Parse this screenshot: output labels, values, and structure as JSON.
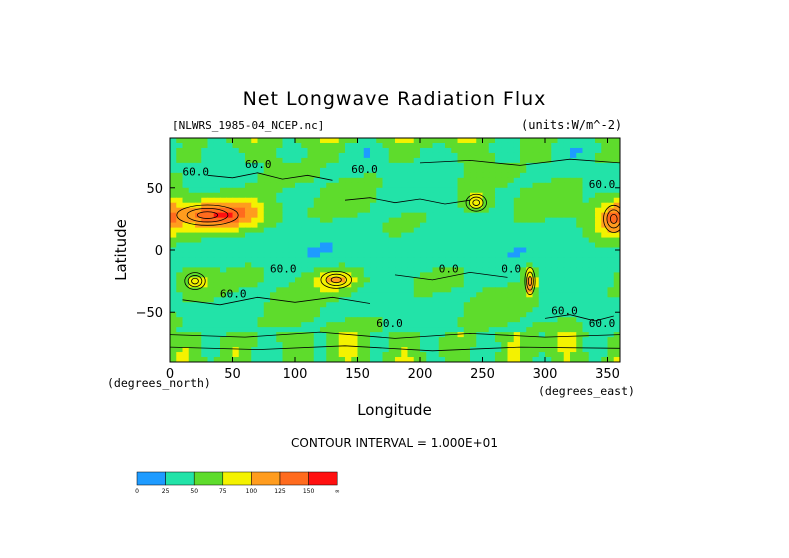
{
  "chart_data": {
    "type": "heatmap",
    "title": "Net Longwave Radiation Flux",
    "subtitle_left": "[NLWRS_1985-04_NCEP.nc]",
    "subtitle_right": "(units:W/m^-2)",
    "xlabel": "Longitude",
    "xlabel_unit": "(degrees_east)",
    "ylabel": "Latitude",
    "ylabel_unit": "(degrees_north)",
    "xlim": [
      0,
      360
    ],
    "ylim": [
      -90,
      90
    ],
    "x_ticks": [
      0,
      50,
      100,
      150,
      200,
      250,
      300,
      350
    ],
    "y_ticks": [
      50,
      0,
      -50
    ],
    "contour_interval_label": "CONTOUR INTERVAL = 1.000E+01",
    "contour_labels": [
      "60.0",
      "60.0",
      "60.0",
      "60.0",
      "60.0",
      "60.0",
      "60.0",
      "60.0",
      "60.0",
      "0.0",
      "0.0"
    ],
    "colorbar": {
      "tick_labels": [
        "0",
        "25",
        "50",
        "75",
        "100",
        "125",
        "150",
        "∞"
      ],
      "colors": [
        "#1e9bff",
        "#22e3a8",
        "#5edc2c",
        "#f4f200",
        "#ff9c1e",
        "#ff6b1e",
        "#ff1010"
      ]
    },
    "field_description": "Mostly 25-75 W/m2 (green/teal) with high-flux patches (yellow-orange, up to ~125) over the Sahara/Arabia (~0-60E, 20-50N), northern Mexico (~250E, 30N), Peru/Andes (~285E, -20S), southern Africa and Australia (~20E & 130E, -25S), Antarctica coast."
  }
}
